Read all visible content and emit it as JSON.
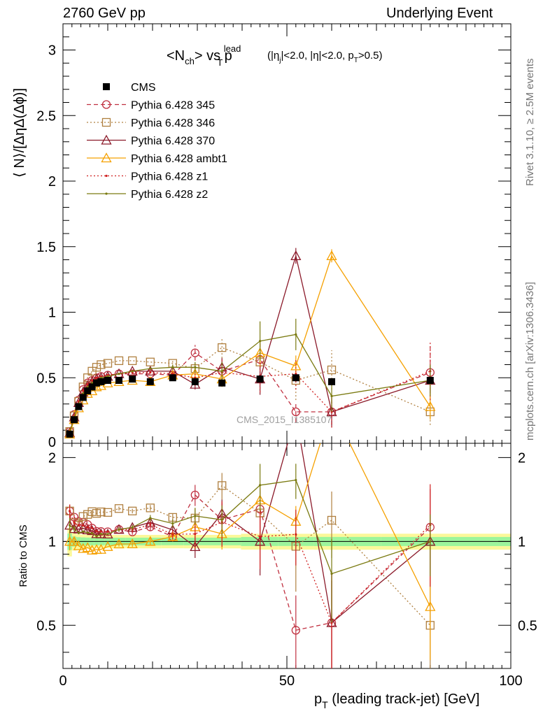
{
  "header": {
    "left": "2760 GeV pp",
    "right": "Underlying Event"
  },
  "side": {
    "rivet": "Rivet 3.1.10, ≥ 2.5M events",
    "mcplots": "mcplots.cern.ch [arXiv:1306.3436]"
  },
  "plot": {
    "title_main": "<N",
    "title_sub1": "ch",
    "title_mid": "> vs p",
    "title_sup": "lead",
    "title_sub2": "T",
    "title_cuts_a": "(|η",
    "title_cuts_sub1": "j",
    "title_cuts_b": "|<2.0, |η|<2.0, p",
    "title_cuts_sub2": "T",
    "title_cuts_c": ">0.5)",
    "ylabel": "⟨ N⟩/[ΔηΔ(Δϕ)]",
    "xlabel_a": "p",
    "xlabel_sub": "T",
    "xlabel_b": " (leading track-jet) [GeV]",
    "ratio_ylabel": "Ratio to CMS",
    "watermark": "CMS_2015_I1385107"
  },
  "chart_data": {
    "type": "line",
    "x": [
      1.5,
      2.5,
      3.5,
      4.5,
      5.5,
      6.5,
      7.5,
      8.5,
      10,
      12.5,
      15.5,
      19.5,
      24.5,
      29.5,
      35.5,
      44,
      52,
      60,
      82
    ],
    "xlim": [
      0,
      100
    ],
    "ylim": [
      0,
      3.2
    ],
    "ratio_ylim": [
      0.35,
      2.25
    ],
    "xticks": [
      0,
      50,
      100
    ],
    "yticks": [
      0.5,
      1,
      1.5,
      2,
      2.5,
      3
    ],
    "ratio_yticks": [
      0.5,
      1,
      2
    ],
    "series": [
      {
        "name": "CMS",
        "color": "#000000",
        "style": "solid",
        "marker": "square-filled",
        "values": [
          0.07,
          0.18,
          0.28,
          0.35,
          0.4,
          0.43,
          0.46,
          0.47,
          0.48,
          0.48,
          0.49,
          0.47,
          0.5,
          0.47,
          0.46,
          0.49,
          0.5,
          0.47,
          0.48
        ],
        "err": [
          0.01,
          0.01,
          0.01,
          0.01,
          0.01,
          0.01,
          0.01,
          0.01,
          0.01,
          0.01,
          0.01,
          0.01,
          0.01,
          0.01,
          0.01,
          0.02,
          0.02,
          0.02,
          0.02
        ]
      },
      {
        "name": "Pythia 6.428 345",
        "color": "#c03040",
        "style": "dashed",
        "marker": "circle-open",
        "values": [
          0.09,
          0.22,
          0.33,
          0.41,
          0.46,
          0.48,
          0.5,
          0.51,
          0.52,
          0.53,
          0.53,
          0.53,
          0.52,
          0.69,
          0.55,
          0.64,
          0.24,
          0.24,
          0.54
        ],
        "err": [
          0.005,
          0.005,
          0.005,
          0.005,
          0.006,
          0.006,
          0.007,
          0.007,
          0.008,
          0.01,
          0.012,
          0.015,
          0.02,
          0.06,
          0.08,
          0.12,
          0.08,
          0.1,
          0.2
        ]
      },
      {
        "name": "Pythia 6.428 346",
        "color": "#b08040",
        "style": "dotted",
        "marker": "square-open",
        "values": [
          0.09,
          0.21,
          0.32,
          0.43,
          0.5,
          0.55,
          0.58,
          0.6,
          0.61,
          0.63,
          0.63,
          0.62,
          0.61,
          0.57,
          0.73,
          0.62,
          0.48,
          0.56,
          0.24
        ],
        "err": [
          0.005,
          0.005,
          0.005,
          0.005,
          0.006,
          0.006,
          0.007,
          0.007,
          0.008,
          0.01,
          0.012,
          0.015,
          0.02,
          0.05,
          0.08,
          0.12,
          0.15,
          0.15,
          0.1
        ]
      },
      {
        "name": "Pythia 6.428 370",
        "color": "#8b1a2a",
        "style": "solid",
        "marker": "triangle-open",
        "values": [
          0.08,
          0.2,
          0.31,
          0.39,
          0.44,
          0.47,
          0.49,
          0.5,
          0.51,
          0.53,
          0.55,
          0.55,
          0.55,
          0.45,
          0.58,
          0.49,
          1.43,
          0.24,
          0.48
        ],
        "err": [
          0.005,
          0.005,
          0.005,
          0.005,
          0.006,
          0.006,
          0.007,
          0.007,
          0.008,
          0.01,
          0.012,
          0.015,
          0.02,
          0.04,
          0.07,
          0.12,
          0.06,
          0.12,
          0.12
        ]
      },
      {
        "name": "Pythia 6.428 ambt1",
        "color": "#f5a000",
        "style": "solid",
        "marker": "triangle-open",
        "values": [
          0.07,
          0.18,
          0.27,
          0.33,
          0.38,
          0.4,
          0.43,
          0.44,
          0.46,
          0.47,
          0.48,
          0.47,
          0.52,
          0.53,
          0.49,
          0.69,
          0.59,
          1.43,
          0.28
        ],
        "err": [
          0.005,
          0.005,
          0.005,
          0.005,
          0.006,
          0.006,
          0.007,
          0.007,
          0.008,
          0.01,
          0.012,
          0.015,
          0.02,
          0.04,
          0.06,
          0.1,
          0.08,
          0.05,
          0.1
        ]
      },
      {
        "name": "Pythia 6.428 z1",
        "color": "#d02020",
        "style": "dotted",
        "marker": "dot",
        "values": [
          0.09,
          0.21,
          0.32,
          0.4,
          0.45,
          0.48,
          0.5,
          0.51,
          0.52,
          0.53,
          0.54,
          0.54,
          0.53,
          0.5,
          0.54,
          0.51,
          0.53,
          0.24,
          0.55
        ],
        "err": [
          0.005,
          0.005,
          0.005,
          0.005,
          0.006,
          0.006,
          0.007,
          0.007,
          0.008,
          0.01,
          0.012,
          0.015,
          0.02,
          0.06,
          0.1,
          0.12,
          0.12,
          0.12,
          0.22
        ]
      },
      {
        "name": "Pythia 6.428 z2",
        "color": "#7a7a10",
        "style": "solid",
        "marker": "dot",
        "values": [
          0.08,
          0.2,
          0.3,
          0.38,
          0.43,
          0.46,
          0.48,
          0.5,
          0.51,
          0.53,
          0.55,
          0.57,
          0.58,
          0.58,
          0.55,
          0.78,
          0.83,
          0.36,
          0.48
        ],
        "err": [
          0.005,
          0.005,
          0.005,
          0.005,
          0.006,
          0.006,
          0.007,
          0.007,
          0.008,
          0.01,
          0.012,
          0.015,
          0.02,
          0.04,
          0.07,
          0.15,
          0.12,
          0.12,
          0.12
        ]
      }
    ]
  }
}
